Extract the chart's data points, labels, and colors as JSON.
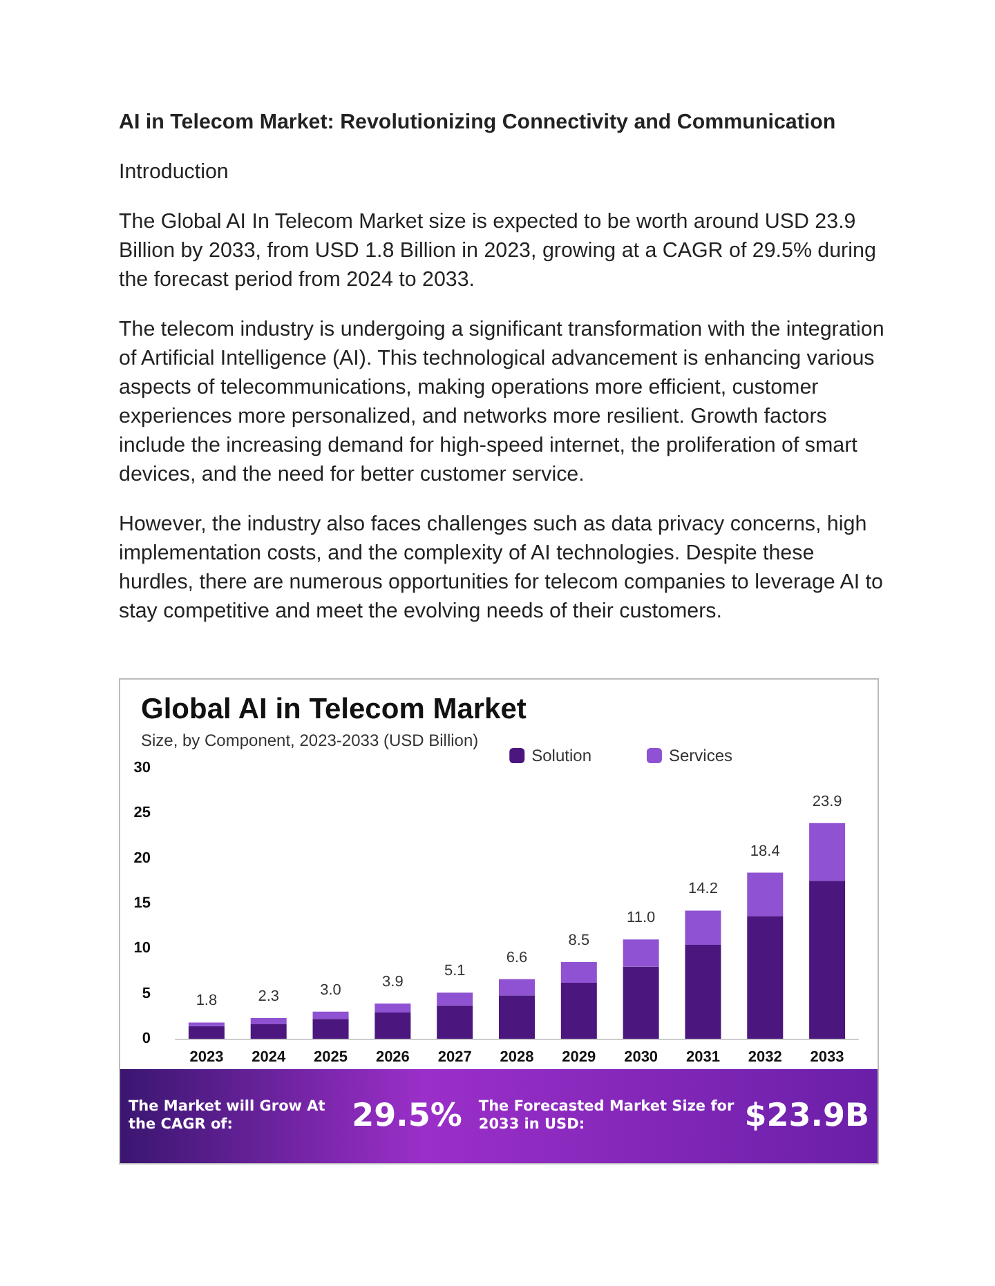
{
  "chart_data": {
    "type": "bar",
    "title": "Global AI in Telecom Market",
    "subtitle": "Size, by Component, 2023-2033 (USD Billion)",
    "annotations": [
      "AI in Telecom Market: Revolutionizing Connectivity and Communication",
      "Introduction",
      "The Global AI In Telecom Market size is expected to be worth around USD 23.9 Billion by 2033, from USD 1.8 Billion in 2023, growing at a CAGR of 29.5% during the forecast period from 2024 to 2033.",
      "The telecom industry is undergoing a significant transformation with the integration of Artificial Intelligence (AI). This technological advancement is enhancing various aspects of telecommunications, making operations more efficient, customer experiences more personalized, and networks more resilient. Growth factors include the increasing demand for high-speed internet, the proliferation of smart devices, and the need for better customer service.",
      "However, the industry also faces challenges such as data privacy concerns, high implementation costs, and the complexity of AI technologies. Despite these hurdles, there are numerous opportunities for telecom companies to leverage AI to stay competitive and meet the evolving needs of their customers.",
      "The Market will Grow At the CAGR of:",
      "29.5%",
      "The Forecasted Market Size for 2033 in USD:",
      "$23.9B"
    ],
    "categories": [
      "2023",
      "2024",
      "2025",
      "2026",
      "2027",
      "2028",
      "2029",
      "2030",
      "2031",
      "2032",
      "2033"
    ],
    "series": [
      {
        "name": "Solution",
        "color": "#4b177f",
        "values": [
          1.4,
          1.6,
          2.2,
          2.9,
          3.7,
          4.8,
          6.2,
          8.0,
          10.4,
          13.6,
          17.5
        ]
      },
      {
        "name": "Services",
        "color": "#8f52d2",
        "values": [
          0.4,
          0.7,
          0.8,
          1.0,
          1.4,
          1.8,
          2.3,
          3.0,
          3.8,
          4.8,
          6.4
        ]
      }
    ],
    "stacked": true,
    "totals": [
      "1.8",
      "2.3",
      "3.0",
      "3.9",
      "5.1",
      "6.6",
      "8.5",
      "11.0",
      "14.2",
      "18.4",
      "23.9"
    ],
    "ylim": [
      0,
      30
    ],
    "yticks": [
      0,
      5,
      10,
      15,
      20,
      25,
      30
    ],
    "grid": false,
    "legend": "top right"
  }
}
